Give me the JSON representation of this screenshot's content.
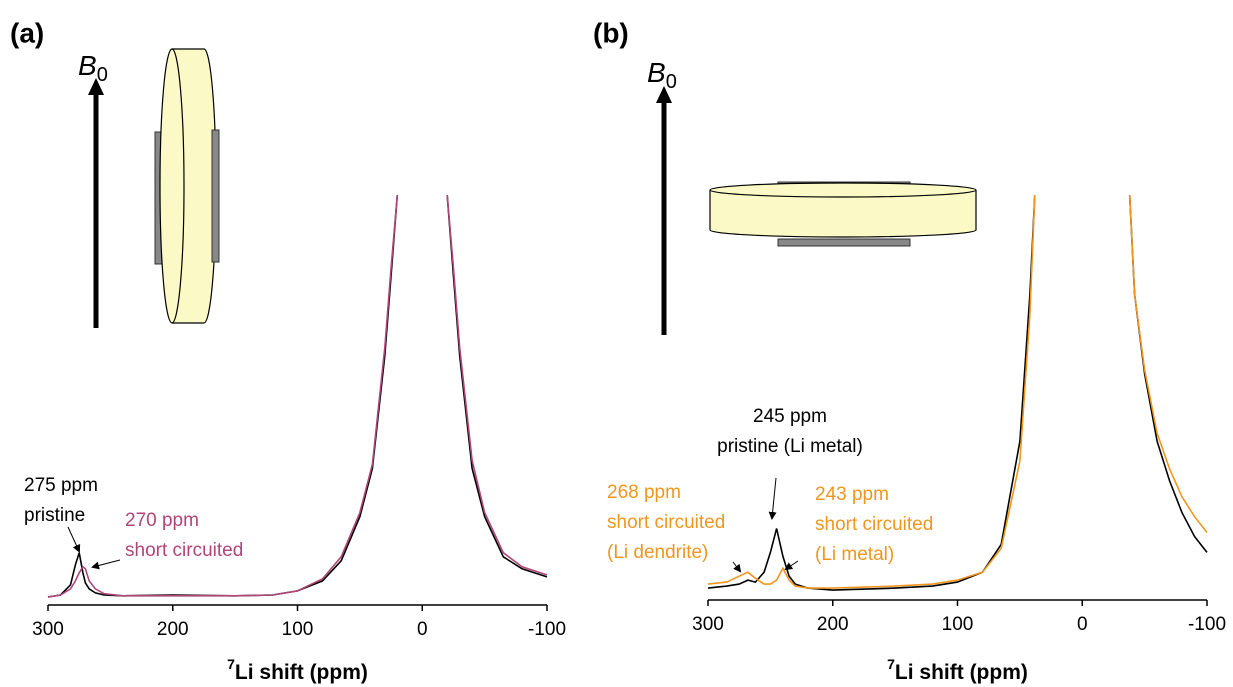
{
  "chart_data": [
    {
      "type": "line",
      "panel_label": "(a)",
      "field_label": {
        "symbol": "B",
        "subscript": "0"
      },
      "xlabel": {
        "superscript": "7",
        "text": "Li shift (ppm)"
      },
      "x": [
        300,
        290,
        282,
        278,
        275,
        272,
        270,
        267,
        262,
        255,
        240,
        200,
        150,
        120,
        100,
        80,
        65,
        50,
        40,
        30,
        25,
        20,
        0,
        -20,
        -25,
        -30,
        -40,
        -50,
        -65,
        -80,
        -100
      ],
      "series": [
        {
          "color": "#000000",
          "values": [
            0,
            0.5,
            3,
            8,
            11,
            6,
            3.5,
            2,
            1,
            0.5,
            0.3,
            0.5,
            0.3,
            0.5,
            1.5,
            4,
            9,
            20,
            32,
            60,
            80,
            100,
            null,
            100,
            80,
            60,
            32,
            20,
            10,
            7,
            5
          ]
        },
        {
          "color": "#b0457a",
          "values": [
            0,
            0.5,
            2,
            4,
            6,
            7.5,
            7,
            4,
            2,
            0.8,
            0.3,
            0.3,
            0.3,
            0.5,
            1.5,
            4.5,
            10,
            21,
            33,
            62,
            82,
            100,
            null,
            100,
            82,
            62,
            34,
            21,
            11,
            7.5,
            5.5
          ]
        }
      ],
      "xlim": [
        300,
        -100
      ],
      "xticks": [
        300,
        200,
        100,
        0,
        -100
      ],
      "ylim": [
        -2,
        100
      ],
      "annotations": [
        {
          "lines": [
            "275 ppm",
            "pristine"
          ],
          "color": "#000000"
        },
        {
          "lines": [
            "270 ppm",
            "short circuited"
          ],
          "color": "#b0457a"
        }
      ]
    },
    {
      "type": "line",
      "panel_label": "(b)",
      "field_label": {
        "symbol": "B",
        "subscript": "0"
      },
      "xlabel": {
        "superscript": "7",
        "text": "Li shift (ppm)"
      },
      "x": [
        300,
        285,
        275,
        268,
        262,
        255,
        250,
        245,
        240,
        235,
        230,
        220,
        200,
        150,
        120,
        100,
        80,
        65,
        50,
        42,
        38,
        0,
        -38,
        -42,
        -50,
        -60,
        -70,
        -80,
        -90,
        -100
      ],
      "series": [
        {
          "color": "#000000",
          "values": [
            1,
            1.5,
            2,
            3,
            2.5,
            5,
            10,
            16,
            9,
            4,
            2,
            1,
            0.5,
            1,
            1.5,
            2.5,
            5,
            12,
            38,
            75,
            100,
            null,
            100,
            75,
            55,
            38,
            28,
            20,
            14,
            10
          ]
        },
        {
          "color": "#f0961e",
          "values": [
            2,
            2.5,
            4,
            5,
            3.5,
            2,
            2,
            3,
            6,
            3,
            1.5,
            1,
            1,
            1.5,
            2,
            3,
            5,
            11,
            33,
            70,
            100,
            null,
            100,
            75,
            56,
            40,
            31,
            24,
            19,
            15
          ]
        }
      ],
      "xlim": [
        300,
        -100
      ],
      "xticks": [
        300,
        200,
        100,
        0,
        -100
      ],
      "ylim": [
        -2,
        100
      ],
      "annotations": [
        {
          "lines": [
            "245 ppm",
            "pristine (Li metal)"
          ],
          "color": "#000000"
        },
        {
          "lines": [
            "268 ppm",
            "short circuited",
            "(Li dendrite)"
          ],
          "color": "#f0961e"
        },
        {
          "lines": [
            "243 ppm",
            "short circuited",
            "(Li metal)"
          ],
          "color": "#f0961e"
        }
      ]
    }
  ]
}
